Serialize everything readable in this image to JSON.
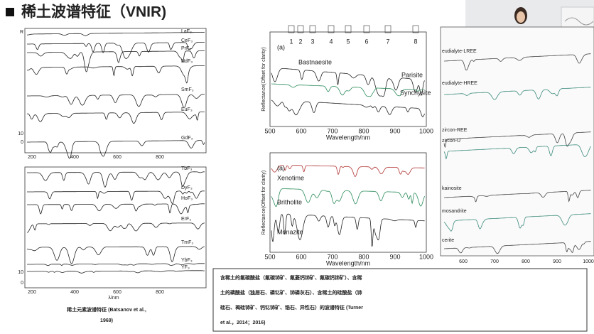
{
  "header": {
    "title": "稀土波谱特征（VNIR)"
  },
  "left_figure": {
    "top_labels": [
      "LaF₃",
      "CeF₃",
      "PrF₃",
      "NdF₃",
      "SmF₃",
      "EuF₃",
      "GdF₃"
    ],
    "bottom_labels": [
      "TbF₃",
      "DyF₃",
      "HoF₃",
      "ErF₃",
      "TmF₃",
      "YbF₃",
      "YF₃"
    ],
    "y_axis_label": "R",
    "y_ticks": [
      10,
      0
    ],
    "x_ticks": [
      200,
      400,
      600,
      800
    ],
    "x_axis_label": "λ/nm",
    "caption": [
      "稀土元素波谱特征 (Batsanov et al.,",
      "1969)"
    ]
  },
  "middle_top": {
    "panel": "(a)",
    "minerals": [
      "Bastnaesite",
      "Parisite",
      "Synchysite"
    ],
    "bands": [
      "1",
      "2",
      "3",
      "4",
      "5",
      "6",
      "7",
      "8"
    ],
    "y_axis_label": "Reflectance(Offset for clarity)",
    "x_axis_label": "Wavelength/nm",
    "x_ticks": [
      500,
      600,
      700,
      800,
      900,
      1000
    ]
  },
  "middle_bottom": {
    "panel": "(a)",
    "minerals": [
      "Xenotime",
      "Britholite",
      "Monazite"
    ],
    "y_axis_label": "Reflectance(Offset for clarity)",
    "x_axis_label": "Wavelength/nm",
    "x_ticks": [
      500,
      600,
      700,
      800,
      900,
      1000
    ]
  },
  "right_figure": {
    "labels": [
      "eudialyte-LREE",
      "eudialyte-HREE",
      "zircon-REE",
      "zircon-U",
      "kainosite",
      "mosandrite",
      "cerite"
    ],
    "x_ticks": [
      600,
      700,
      800,
      900,
      1000
    ]
  },
  "caption": {
    "lines": [
      "含稀土的氟碳酸盐（氟碳铈矿、氟菱钙铈矿、氟碳钙铈矿）、含稀",
      "土的磷酸盐（独居石、磷钇矿、铈磷灰石）、含稀土的硅酸盐（铈",
      "硅石、褐硅铈矿、钙钇铈矿、锆石、异性石）的波谱特征 (Turner",
      "et al.，2014；2016)"
    ]
  }
}
